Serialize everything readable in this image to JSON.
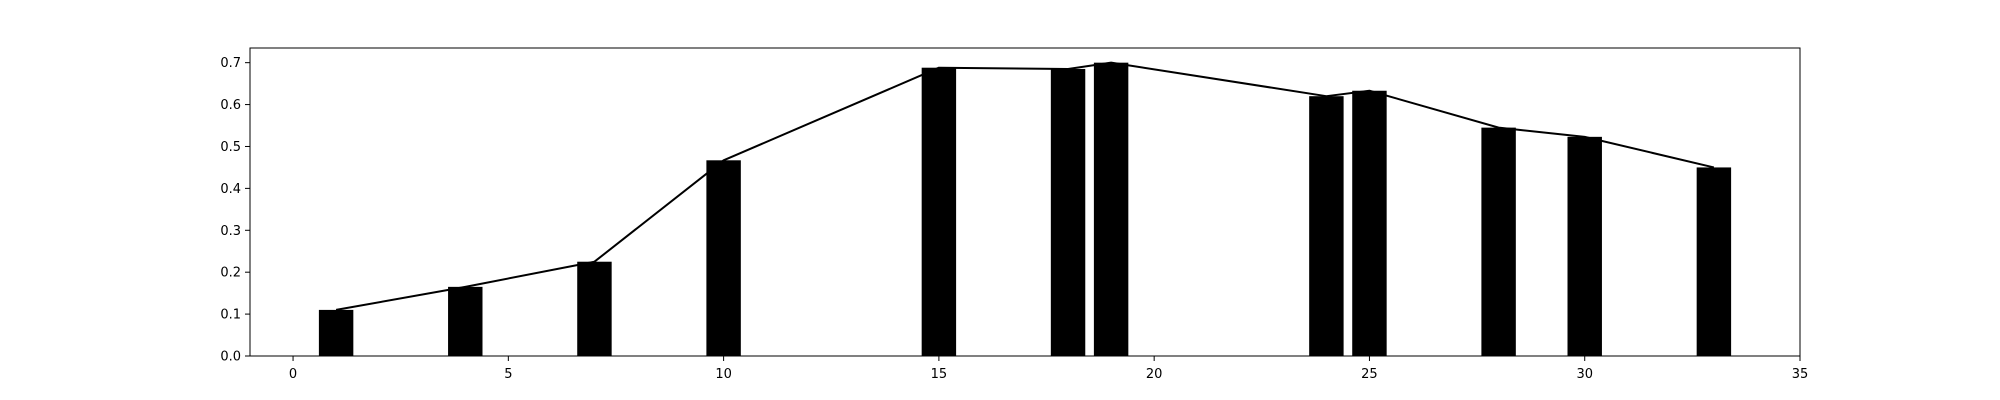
{
  "chart_data": {
    "type": "bar",
    "title": "",
    "xlabel": "",
    "ylabel": "",
    "xlim": [
      -1,
      35
    ],
    "ylim": [
      0,
      0.735
    ],
    "x_ticks": [
      0,
      5,
      10,
      15,
      20,
      25,
      30,
      35
    ],
    "y_ticks": [
      0.0,
      0.1,
      0.2,
      0.3,
      0.4,
      0.5,
      0.6,
      0.7
    ],
    "x_tick_labels": [
      "0",
      "5",
      "10",
      "15",
      "20",
      "25",
      "30",
      "35"
    ],
    "y_tick_labels": [
      "0.0",
      "0.1",
      "0.2",
      "0.3",
      "0.4",
      "0.5",
      "0.6",
      "0.7"
    ],
    "grid": false,
    "legend": "none",
    "bar_color": "#000000",
    "line_color": "#000000",
    "bar_width": 0.8,
    "series": [
      {
        "kind": "bar",
        "x": [
          1,
          4,
          7,
          10,
          15,
          18,
          19,
          24,
          25,
          28,
          30,
          33
        ],
        "values": [
          0.11,
          0.165,
          0.225,
          0.467,
          0.688,
          0.685,
          0.7,
          0.62,
          0.633,
          0.545,
          0.523,
          0.45
        ]
      },
      {
        "kind": "line",
        "x": [
          1,
          4,
          7,
          10,
          15,
          18,
          19,
          24,
          25,
          28,
          30,
          33
        ],
        "values": [
          0.11,
          0.165,
          0.225,
          0.467,
          0.688,
          0.685,
          0.7,
          0.62,
          0.633,
          0.545,
          0.523,
          0.45
        ]
      }
    ]
  }
}
